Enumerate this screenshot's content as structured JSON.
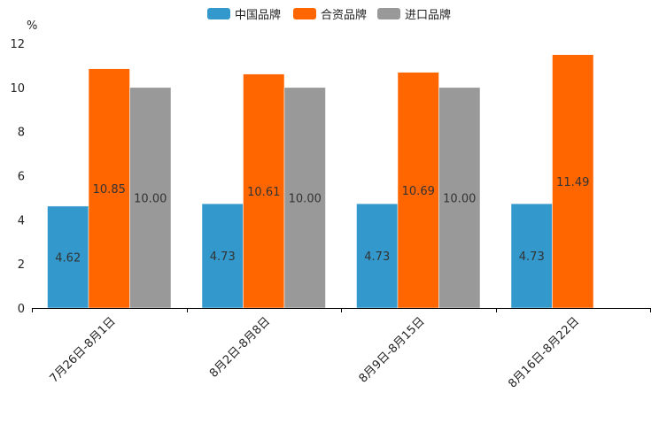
{
  "chart_data": {
    "type": "bar",
    "title": "",
    "xlabel": "",
    "ylabel": "%",
    "ylim": [
      0,
      12
    ],
    "yticks": [
      0,
      2,
      4,
      6,
      8,
      10,
      12
    ],
    "grid": false,
    "legend_position": "top-center",
    "categories": [
      "7月26日-8月1日",
      "8月2日-8月8日",
      "8月9日-8月15日",
      "8月16日-8月22日"
    ],
    "series": [
      {
        "name": "中国品牌",
        "color": "#3399cc",
        "values": [
          4.62,
          4.73,
          4.73,
          4.73
        ],
        "labels": [
          "4.62",
          "4.73",
          "4.73",
          "4.73"
        ]
      },
      {
        "name": "合资品牌",
        "color": "#ff6600",
        "values": [
          10.85,
          10.61,
          10.69,
          11.49
        ],
        "labels": [
          "10.85",
          "10.61",
          "10.69",
          "11.49"
        ]
      },
      {
        "name": "进口品牌",
        "color": "#999999",
        "values": [
          10.0,
          10.0,
          10.0,
          null
        ],
        "labels": [
          "10.00",
          "10.00",
          "10.00",
          null
        ]
      }
    ]
  }
}
